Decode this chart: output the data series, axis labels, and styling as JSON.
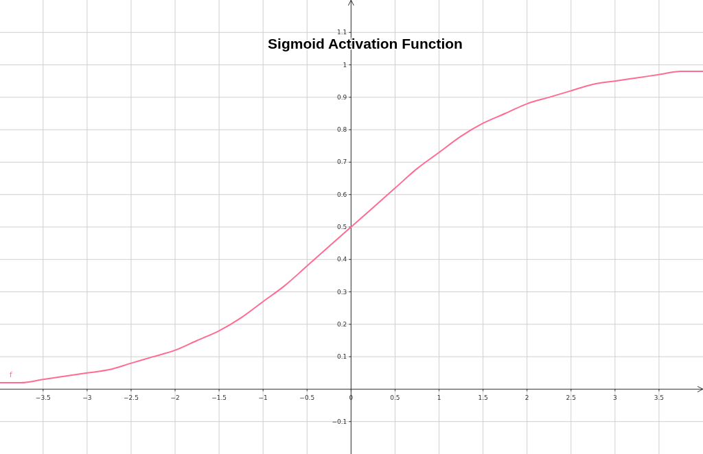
{
  "chart_data": {
    "type": "line",
    "title": "Sigmoid Activation Function",
    "x": [
      -3.99,
      -3.75,
      -3.5,
      -3.25,
      -3,
      -2.75,
      -2.5,
      -2.25,
      -2,
      -1.75,
      -1.5,
      -1.25,
      -1,
      -0.75,
      -0.5,
      -0.25,
      0,
      0.25,
      0.5,
      0.75,
      1,
      1.25,
      1.5,
      1.75,
      2,
      2.25,
      2.5,
      2.75,
      3,
      3.25,
      3.5,
      3.75,
      4
    ],
    "series": [
      {
        "name": "f",
        "color": "#ff6b91",
        "values": [
          0.02,
          0.02,
          0.03,
          0.04,
          0.05,
          0.06,
          0.08,
          0.1,
          0.12,
          0.15,
          0.18,
          0.22,
          0.27,
          0.32,
          0.38,
          0.44,
          0.5,
          0.56,
          0.62,
          0.68,
          0.73,
          0.78,
          0.82,
          0.85,
          0.88,
          0.9,
          0.92,
          0.94,
          0.95,
          0.96,
          0.97,
          0.98,
          0.98
        ]
      }
    ],
    "xlim": [
      -3.99,
      4
    ],
    "ylim": [
      -0.2,
      1.2
    ],
    "xticks": [
      -3.5,
      -3,
      -2.5,
      -2,
      -1.5,
      -1,
      -0.5,
      0,
      0.5,
      1,
      1.5,
      2,
      2.5,
      3,
      3.5
    ],
    "yticks": [
      -0.1,
      0.1,
      0.2,
      0.3,
      0.4,
      0.5,
      0.6,
      0.7,
      0.8,
      0.9,
      1,
      1.1
    ],
    "grid": true,
    "marker": "none",
    "line_style": "solid"
  }
}
